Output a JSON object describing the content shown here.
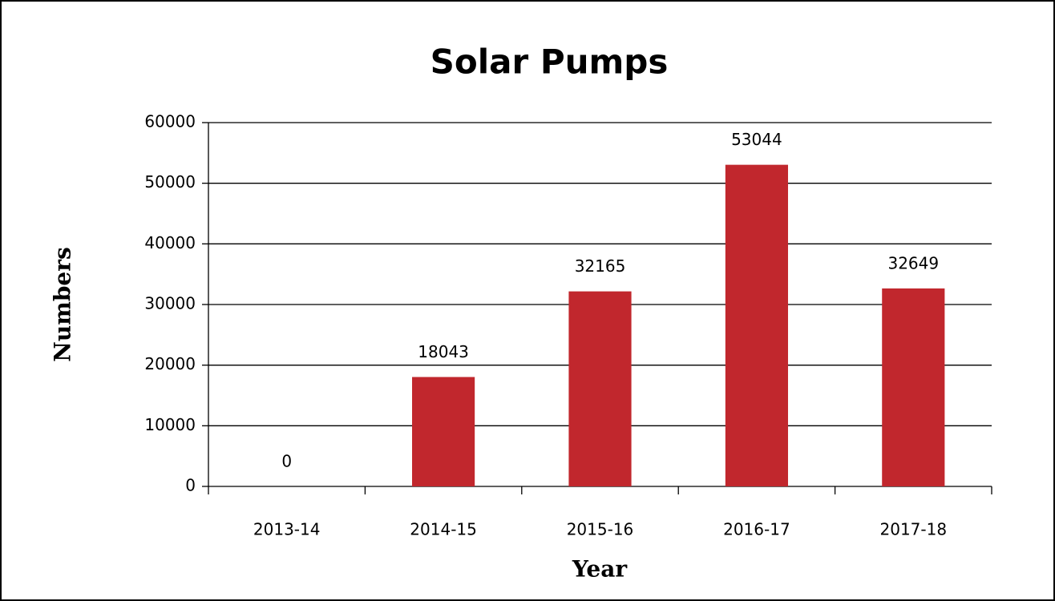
{
  "chart_data": {
    "type": "bar",
    "title": "Solar Pumps",
    "x_label": "Year",
    "y_label": "Numbers",
    "categories": [
      "2013-14",
      "2014-15",
      "2015-16",
      "2016-17",
      "2017-18"
    ],
    "values": [
      0,
      18043,
      32165,
      53044,
      32649
    ],
    "color": "#c1272d",
    "ylim": [
      0,
      60000
    ],
    "yticks": [
      0,
      10000,
      20000,
      30000,
      40000,
      50000,
      60000
    ],
    "grid": true
  }
}
